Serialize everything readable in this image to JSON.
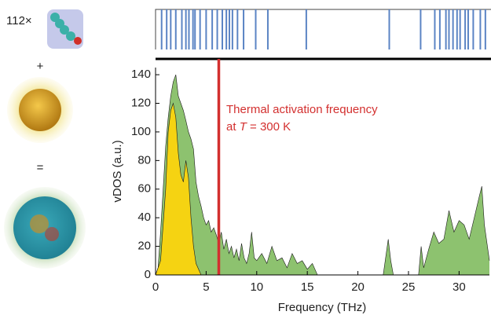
{
  "chart_data": {
    "type": "area",
    "side_labels": [
      "112×",
      "+",
      "="
    ],
    "xlabel": "Frequency (THz)",
    "ylabel": "vDOS (a.u.)",
    "xlim": [
      0,
      33
    ],
    "ylim": [
      0,
      145
    ],
    "xticks": [
      0,
      5,
      10,
      15,
      20,
      25,
      30
    ],
    "yticks": [
      0,
      20,
      40,
      60,
      80,
      100,
      120,
      140
    ],
    "marker_x": 6.25,
    "marker_color": "#d3302f",
    "annotation": [
      "Thermal activation frequency",
      "at ",
      "T",
      " = 300 K"
    ],
    "modes": [
      0.6,
      1.1,
      1.5,
      2.0,
      2.6,
      3.0,
      3.3,
      3.7,
      3.9,
      4.4,
      5.0,
      5.6,
      6.1,
      6.6,
      7.0,
      7.3,
      7.6,
      8.1,
      8.7,
      9.9,
      11.1,
      14.9,
      23.1,
      26.2,
      27.6,
      28.1,
      28.7,
      29.0,
      29.4,
      29.8,
      30.1,
      30.6,
      30.9,
      31.4,
      32.1,
      32.6
    ],
    "modes_color": "#5b84c4",
    "series": [
      {
        "color": "#8dc26f",
        "x": [
          0,
          0.25,
          0.5,
          0.75,
          1,
          1.25,
          1.5,
          1.75,
          2,
          2.25,
          2.5,
          2.75,
          3,
          3.25,
          3.5,
          3.75,
          4,
          4.25,
          4.5,
          4.75,
          5,
          5.25,
          5.5,
          5.75,
          6,
          6.25,
          6.5,
          6.75,
          7,
          7.25,
          7.5,
          7.75,
          8,
          8.25,
          8.5,
          8.75,
          9,
          9.25,
          9.5,
          9.75,
          10,
          10.5,
          11,
          11.5,
          12,
          12.5,
          13,
          13.5,
          14,
          14.5,
          15,
          15.5,
          16,
          22.5,
          23,
          23.25,
          23.5,
          26,
          26.25,
          26.5,
          27,
          27.5,
          28,
          28.5,
          29,
          29.5,
          30,
          30.5,
          31,
          31.5,
          32,
          32.25,
          32.5,
          33
        ],
        "values": [
          0,
          5,
          30,
          60,
          90,
          110,
          125,
          135,
          140,
          125,
          120,
          115,
          108,
          100,
          95,
          88,
          65,
          55,
          48,
          40,
          35,
          38,
          30,
          33,
          28,
          22,
          30,
          18,
          25,
          15,
          20,
          12,
          18,
          10,
          22,
          12,
          8,
          15,
          30,
          12,
          10,
          15,
          8,
          20,
          10,
          12,
          5,
          15,
          8,
          10,
          4,
          8,
          0,
          0,
          25,
          10,
          0,
          0,
          20,
          5,
          18,
          30,
          22,
          25,
          45,
          30,
          38,
          35,
          25,
          40,
          55,
          62,
          35,
          10
        ]
      },
      {
        "color": "#f5d312",
        "x": [
          0,
          0.5,
          1,
          1.25,
          1.5,
          1.75,
          2,
          2.25,
          2.5,
          2.75,
          3,
          3.25,
          3.5,
          3.75,
          4,
          4.5
        ],
        "values": [
          0,
          10,
          60,
          100,
          115,
          120,
          110,
          85,
          70,
          65,
          80,
          68,
          40,
          20,
          8,
          0
        ]
      }
    ]
  }
}
